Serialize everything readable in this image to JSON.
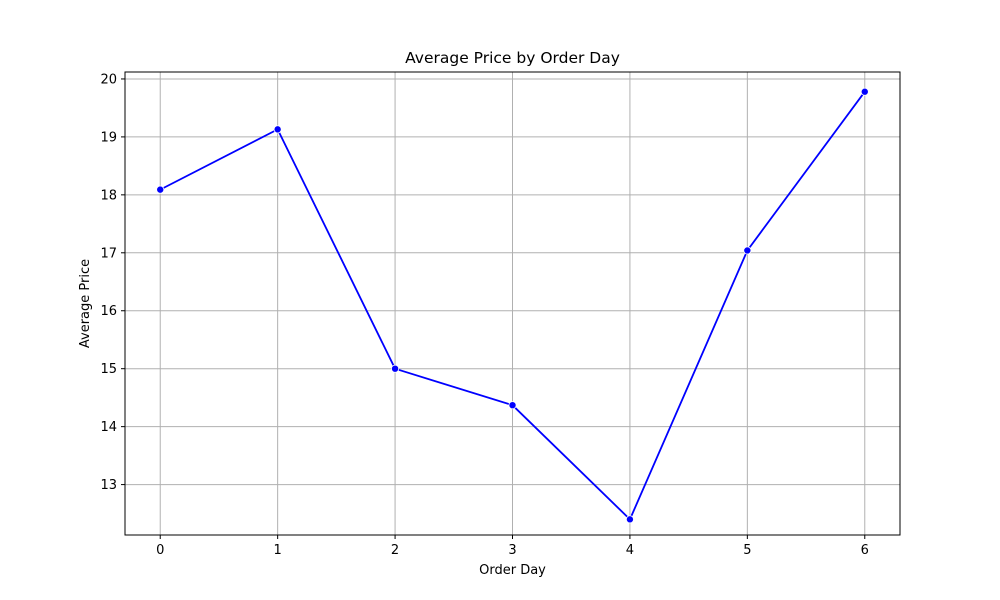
{
  "chart_data": {
    "type": "line",
    "title": "Average Price by Order Day",
    "xlabel": "Order Day",
    "ylabel": "Average Price",
    "x": [
      0,
      1,
      2,
      3,
      4,
      5,
      6
    ],
    "series": [
      {
        "values": [
          18.09,
          19.13,
          15.0,
          14.37,
          12.4,
          17.04,
          19.78
        ],
        "color": "#0000ff",
        "marker": "circle"
      }
    ],
    "x_ticks": [
      "0",
      "1",
      "2",
      "3",
      "4",
      "5",
      "6"
    ],
    "y_ticks": [
      "13",
      "14",
      "15",
      "16",
      "17",
      "18",
      "19",
      "20"
    ],
    "xlim": [
      -0.3,
      6.3
    ],
    "ylim": [
      12.13,
      20.12
    ],
    "grid": true
  }
}
